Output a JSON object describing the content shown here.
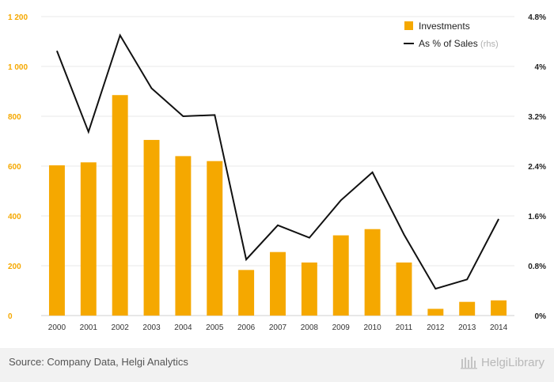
{
  "chart_data": {
    "type": "bar",
    "categories": [
      "2000",
      "2001",
      "2002",
      "2003",
      "2004",
      "2005",
      "2006",
      "2007",
      "2008",
      "2009",
      "2010",
      "2011",
      "2012",
      "2013",
      "2014"
    ],
    "series": [
      {
        "name": "Investments",
        "kind": "bar",
        "axis": "left",
        "color": "#f5a800",
        "values": [
          603,
          615,
          885,
          705,
          640,
          620,
          183,
          255,
          213,
          322,
          347,
          213,
          27,
          55,
          61
        ]
      },
      {
        "name": "As % of Sales",
        "kind": "line",
        "axis": "right",
        "color": "#111111",
        "values": [
          4.25,
          2.95,
          4.5,
          3.65,
          3.2,
          3.22,
          0.9,
          1.45,
          1.25,
          1.85,
          2.3,
          1.3,
          0.43,
          0.58,
          1.55
        ]
      }
    ],
    "legend": {
      "position": "top-right",
      "items": [
        {
          "label": "Investments",
          "suffix": ""
        },
        {
          "label": "As % of Sales",
          "suffix": "(rhs)"
        }
      ]
    },
    "y_left": {
      "ylim": [
        0,
        1200
      ],
      "ticks": [
        0,
        200,
        400,
        600,
        800,
        1000,
        1200
      ],
      "tick_labels": [
        "0",
        "200",
        "400",
        "600",
        "800",
        "1 000",
        "1 200"
      ],
      "color": "#f5a800"
    },
    "y_right": {
      "ylim": [
        0,
        4.8
      ],
      "ticks": [
        0,
        0.8,
        1.6,
        2.4,
        3.2,
        4,
        4.8
      ],
      "tick_labels": [
        "0%",
        "0.8%",
        "1.6%",
        "2.4%",
        "3.2%",
        "4%",
        "4.8%"
      ],
      "color": "#222222"
    },
    "grid": true,
    "title": "",
    "xlabel": "",
    "ylabel": ""
  },
  "footer": {
    "source": "Source: Company Data, Helgi Analytics",
    "logo_text": "HelgiLibrary"
  }
}
